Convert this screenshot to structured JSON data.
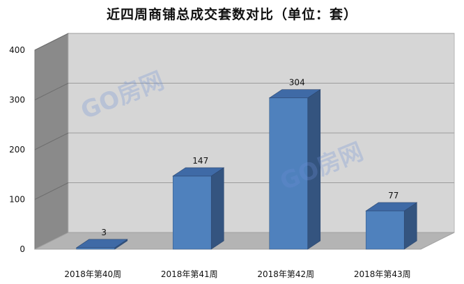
{
  "chart_data": {
    "type": "bar",
    "title": "近四周商铺总成交套数对比（单位：套）",
    "categories": [
      "2018年第40周",
      "2018年第41周",
      "2018年第42周",
      "2018年第43周"
    ],
    "values": [
      3,
      147,
      304,
      77
    ],
    "ylim": [
      0,
      400
    ],
    "yticks": [
      0,
      100,
      200,
      300,
      400
    ],
    "grid": true,
    "legend": "none",
    "bar_color": "#4f81bd"
  },
  "watermark": "GO房网"
}
